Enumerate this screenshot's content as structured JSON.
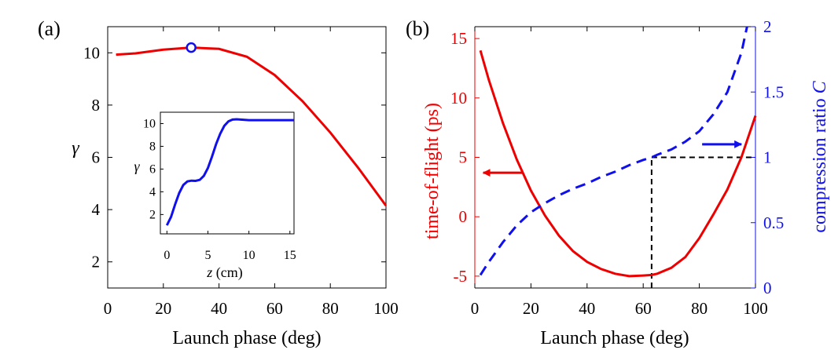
{
  "colors": {
    "red": "#ee0000",
    "blue": "#1010ee",
    "black": "#000000"
  },
  "chart_data": [
    {
      "id": "a",
      "panel_label": "(a)",
      "type": "line",
      "xlabel": "Launch phase (deg)",
      "ylabel": "γ",
      "xlim": [
        0,
        100
      ],
      "ylim": [
        1,
        11
      ],
      "xticks": [
        "0",
        "20",
        "40",
        "60",
        "80",
        "100"
      ],
      "xtick_values": [
        0,
        20,
        40,
        60,
        80,
        100
      ],
      "yticks": [
        "2",
        "4",
        "6",
        "8",
        "10"
      ],
      "ytick_values": [
        2,
        4,
        6,
        8,
        10
      ],
      "series": [
        {
          "color": "#ee0000",
          "style": "solid",
          "x": [
            3,
            10,
            20,
            30,
            40,
            50,
            60,
            70,
            80,
            90,
            100
          ],
          "y": [
            9.93,
            9.98,
            10.12,
            10.2,
            10.15,
            9.85,
            9.15,
            8.15,
            6.95,
            5.6,
            4.15
          ]
        }
      ],
      "marker": {
        "x": 30,
        "y": 10.2,
        "shape": "open-circle",
        "color": "#1010ee"
      },
      "inset": {
        "type": "line",
        "xlabel_var": "z",
        "xlabel_unit": " (cm)",
        "ylabel": "γ",
        "xlim": [
          -0.8,
          15.5
        ],
        "ylim": [
          0.3,
          11
        ],
        "xticks": [
          "0",
          "5",
          "10",
          "15"
        ],
        "xtick_values": [
          0,
          5,
          10,
          15
        ],
        "yticks": [
          "2",
          "4",
          "6",
          "8",
          "10"
        ],
        "ytick_values": [
          2,
          4,
          6,
          8,
          10
        ],
        "series": [
          {
            "color": "#1010ee",
            "style": "solid",
            "x": [
              0,
              0.5,
              1,
              1.5,
              2,
              2.5,
              3,
              3.5,
              4,
              4.5,
              5,
              5.5,
              6,
              6.5,
              7,
              7.5,
              8,
              8.5,
              9,
              10,
              11,
              12,
              13,
              14,
              15.5
            ],
            "y": [
              1.05,
              1.8,
              2.9,
              3.9,
              4.6,
              4.92,
              4.98,
              4.96,
              5.05,
              5.4,
              6.1,
              7.1,
              8.2,
              9.1,
              9.8,
              10.2,
              10.35,
              10.38,
              10.35,
              10.3,
              10.3,
              10.3,
              10.3,
              10.3,
              10.3
            ]
          }
        ]
      }
    },
    {
      "id": "b",
      "panel_label": "(b)",
      "type": "line",
      "xlabel": "Launch phase (deg)",
      "ylabel_left": "time-of-flight (ps)",
      "ylabel_right_text": "compression ratio  ",
      "ylabel_right_var": "C",
      "xlim": [
        0,
        100
      ],
      "ylim_left": [
        -6,
        16
      ],
      "ylim_right": [
        0,
        2
      ],
      "xticks": [
        "0",
        "20",
        "40",
        "60",
        "80",
        "100"
      ],
      "xtick_values": [
        0,
        20,
        40,
        60,
        80,
        100
      ],
      "yticks_left": [
        "-5",
        "0",
        "5",
        "10",
        "15"
      ],
      "ytick_left_values": [
        -5,
        0,
        5,
        10,
        15
      ],
      "yticks_right": [
        "0",
        "0.5",
        "1",
        "1.5",
        "2"
      ],
      "ytick_right_values": [
        0,
        0.5,
        1,
        1.5,
        2
      ],
      "series": [
        {
          "axis": "left",
          "color": "#ee0000",
          "style": "solid",
          "x": [
            2,
            5,
            10,
            15,
            20,
            25,
            30,
            35,
            40,
            45,
            50,
            55,
            60,
            63,
            65,
            70,
            75,
            80,
            85,
            90,
            95,
            100
          ],
          "y": [
            14,
            11.5,
            7.9,
            4.8,
            2.2,
            0.1,
            -1.6,
            -2.9,
            -3.8,
            -4.4,
            -4.8,
            -5.0,
            -4.95,
            -4.9,
            -4.8,
            -4.3,
            -3.4,
            -1.8,
            0.2,
            2.3,
            5.0,
            8.5
          ]
        },
        {
          "axis": "right",
          "color": "#1010ee",
          "style": "dashed",
          "x": [
            2,
            5,
            10,
            15,
            20,
            25,
            30,
            35,
            40,
            45,
            50,
            55,
            60,
            63,
            65,
            70,
            75,
            80,
            85,
            90,
            95,
            97
          ],
          "y": [
            0.1,
            0.2,
            0.35,
            0.48,
            0.58,
            0.65,
            0.71,
            0.76,
            0.8,
            0.85,
            0.89,
            0.94,
            0.98,
            1.0,
            1.02,
            1.06,
            1.12,
            1.2,
            1.33,
            1.5,
            1.8,
            2.0
          ]
        }
      ],
      "guide": {
        "x": 63,
        "y_left_bottom": -6,
        "y_left_at_curve": -4.9,
        "y_right": 1.0
      },
      "arrows": [
        {
          "axis": "left",
          "direction": "left",
          "x_from": 17,
          "x_to": 3,
          "y": 3.7,
          "color": "#ee0000"
        },
        {
          "axis": "right",
          "direction": "right",
          "x_from": 81,
          "x_to": 95,
          "y": 1.1,
          "color": "#1010ee"
        }
      ]
    }
  ]
}
